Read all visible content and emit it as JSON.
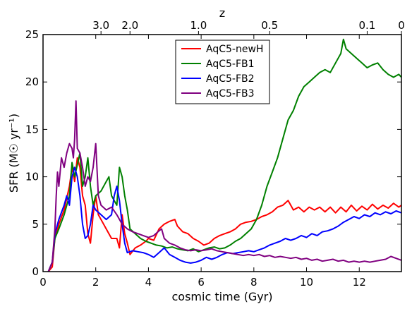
{
  "chart_data": {
    "type": "line",
    "xlabel": "cosmic time (Gyr)",
    "ylabel": "SFR (M☉ yr⁻¹)",
    "top_axis_label": "z",
    "xlim": [
      0,
      13.6
    ],
    "ylim": [
      0,
      25
    ],
    "x_ticks": [
      0,
      2,
      4,
      6,
      8,
      10,
      12
    ],
    "y_ticks": [
      0,
      5,
      10,
      15,
      20,
      25
    ],
    "top_ticks": [
      {
        "label": "3.0",
        "t": 2.2
      },
      {
        "label": "2.0",
        "t": 3.3
      },
      {
        "label": "1.0",
        "t": 5.9
      },
      {
        "label": "0.5",
        "t": 8.6
      },
      {
        "label": "0.1",
        "t": 12.3
      },
      {
        "label": "0",
        "t": 13.6
      }
    ],
    "legend_position": "top-center",
    "series": [
      {
        "name": "AqC5-newH",
        "color": "#ff0000",
        "points": [
          [
            0.2,
            0
          ],
          [
            0.35,
            0.5
          ],
          [
            0.45,
            3.5
          ],
          [
            0.6,
            5
          ],
          [
            0.8,
            6.5
          ],
          [
            1.0,
            9
          ],
          [
            1.1,
            11
          ],
          [
            1.2,
            9.5
          ],
          [
            1.3,
            12
          ],
          [
            1.4,
            11
          ],
          [
            1.5,
            8
          ],
          [
            1.6,
            7
          ],
          [
            1.7,
            4
          ],
          [
            1.8,
            3
          ],
          [
            1.9,
            6
          ],
          [
            2.0,
            8
          ],
          [
            2.1,
            6
          ],
          [
            2.2,
            5.5
          ],
          [
            2.3,
            5
          ],
          [
            2.4,
            4.5
          ],
          [
            2.6,
            3.5
          ],
          [
            2.8,
            3.5
          ],
          [
            2.9,
            2.5
          ],
          [
            3.0,
            6
          ],
          [
            3.1,
            4
          ],
          [
            3.2,
            3
          ],
          [
            3.3,
            1.8
          ],
          [
            3.5,
            2.5
          ],
          [
            3.7,
            2.8
          ],
          [
            3.9,
            3.2
          ],
          [
            4.0,
            3.5
          ],
          [
            4.2,
            3.3
          ],
          [
            4.4,
            4.5
          ],
          [
            4.6,
            5
          ],
          [
            4.8,
            5.3
          ],
          [
            5.0,
            5.5
          ],
          [
            5.1,
            4.8
          ],
          [
            5.3,
            4.2
          ],
          [
            5.5,
            4
          ],
          [
            5.7,
            3.5
          ],
          [
            5.9,
            3.2
          ],
          [
            6.1,
            2.8
          ],
          [
            6.3,
            3
          ],
          [
            6.5,
            3.5
          ],
          [
            6.7,
            3.8
          ],
          [
            6.9,
            4
          ],
          [
            7.1,
            4.2
          ],
          [
            7.3,
            4.5
          ],
          [
            7.5,
            5
          ],
          [
            7.7,
            5.2
          ],
          [
            7.9,
            5.3
          ],
          [
            8.1,
            5.5
          ],
          [
            8.3,
            5.8
          ],
          [
            8.5,
            6
          ],
          [
            8.7,
            6.3
          ],
          [
            8.9,
            6.8
          ],
          [
            9.1,
            7
          ],
          [
            9.3,
            7.5
          ],
          [
            9.5,
            6.5
          ],
          [
            9.7,
            6.8
          ],
          [
            9.9,
            6.3
          ],
          [
            10.1,
            6.8
          ],
          [
            10.3,
            6.5
          ],
          [
            10.5,
            6.8
          ],
          [
            10.7,
            6.3
          ],
          [
            10.9,
            6.8
          ],
          [
            11.1,
            6.2
          ],
          [
            11.3,
            6.8
          ],
          [
            11.5,
            6.3
          ],
          [
            11.7,
            7
          ],
          [
            11.9,
            6.4
          ],
          [
            12.1,
            6.9
          ],
          [
            12.3,
            6.5
          ],
          [
            12.5,
            7.1
          ],
          [
            12.7,
            6.6
          ],
          [
            12.9,
            7
          ],
          [
            13.1,
            6.7
          ],
          [
            13.3,
            7.2
          ],
          [
            13.5,
            6.8
          ],
          [
            13.6,
            7
          ]
        ]
      },
      {
        "name": "AqC5-FB1",
        "color": "#008000",
        "points": [
          [
            0.2,
            0
          ],
          [
            0.35,
            1
          ],
          [
            0.45,
            3.5
          ],
          [
            0.6,
            4.5
          ],
          [
            0.8,
            6
          ],
          [
            1.0,
            8
          ],
          [
            1.1,
            11.5
          ],
          [
            1.2,
            10
          ],
          [
            1.4,
            12.5
          ],
          [
            1.5,
            9
          ],
          [
            1.6,
            10
          ],
          [
            1.7,
            12
          ],
          [
            1.8,
            9
          ],
          [
            1.9,
            7
          ],
          [
            2.0,
            8
          ],
          [
            2.2,
            8.5
          ],
          [
            2.4,
            9.5
          ],
          [
            2.5,
            10
          ],
          [
            2.6,
            8
          ],
          [
            2.8,
            7
          ],
          [
            2.9,
            11
          ],
          [
            3.0,
            10
          ],
          [
            3.1,
            8
          ],
          [
            3.2,
            6.5
          ],
          [
            3.3,
            4.5
          ],
          [
            3.5,
            4
          ],
          [
            3.7,
            3.5
          ],
          [
            3.9,
            3.2
          ],
          [
            4.1,
            3
          ],
          [
            4.3,
            2.8
          ],
          [
            4.5,
            2.7
          ],
          [
            4.7,
            2.5
          ],
          [
            4.9,
            2.6
          ],
          [
            5.1,
            2.4
          ],
          [
            5.3,
            2.3
          ],
          [
            5.5,
            2.2
          ],
          [
            5.7,
            2.4
          ],
          [
            5.9,
            2.1
          ],
          [
            6.1,
            2.3
          ],
          [
            6.3,
            2.5
          ],
          [
            6.5,
            2.6
          ],
          [
            6.7,
            2.4
          ],
          [
            6.9,
            2.5
          ],
          [
            7.1,
            2.8
          ],
          [
            7.3,
            3.2
          ],
          [
            7.5,
            3.5
          ],
          [
            7.7,
            4
          ],
          [
            7.9,
            4.5
          ],
          [
            8.1,
            5.5
          ],
          [
            8.3,
            7
          ],
          [
            8.5,
            9
          ],
          [
            8.7,
            10.5
          ],
          [
            8.9,
            12
          ],
          [
            9.1,
            14
          ],
          [
            9.3,
            16
          ],
          [
            9.5,
            17
          ],
          [
            9.7,
            18.5
          ],
          [
            9.9,
            19.5
          ],
          [
            10.1,
            20
          ],
          [
            10.3,
            20.5
          ],
          [
            10.5,
            21
          ],
          [
            10.7,
            21.3
          ],
          [
            10.9,
            21
          ],
          [
            11.1,
            22
          ],
          [
            11.3,
            23
          ],
          [
            11.4,
            24.5
          ],
          [
            11.5,
            23.5
          ],
          [
            11.7,
            23
          ],
          [
            11.9,
            22.5
          ],
          [
            12.1,
            22
          ],
          [
            12.3,
            21.5
          ],
          [
            12.5,
            21.8
          ],
          [
            12.7,
            22
          ],
          [
            12.9,
            21.3
          ],
          [
            13.1,
            20.8
          ],
          [
            13.3,
            20.5
          ],
          [
            13.5,
            20.8
          ],
          [
            13.6,
            20.5
          ]
        ]
      },
      {
        "name": "AqC5-FB2",
        "color": "#0000ff",
        "points": [
          [
            0.2,
            0
          ],
          [
            0.35,
            1
          ],
          [
            0.45,
            4
          ],
          [
            0.6,
            5.5
          ],
          [
            0.8,
            7
          ],
          [
            0.9,
            8
          ],
          [
            1.0,
            7
          ],
          [
            1.1,
            10
          ],
          [
            1.2,
            11
          ],
          [
            1.3,
            10
          ],
          [
            1.4,
            8
          ],
          [
            1.5,
            5
          ],
          [
            1.6,
            3.5
          ],
          [
            1.7,
            3.8
          ],
          [
            1.8,
            5
          ],
          [
            1.9,
            7
          ],
          [
            2.0,
            6.5
          ],
          [
            2.2,
            6
          ],
          [
            2.4,
            5.5
          ],
          [
            2.6,
            6
          ],
          [
            2.7,
            8
          ],
          [
            2.8,
            9
          ],
          [
            2.9,
            7.5
          ],
          [
            3.0,
            5
          ],
          [
            3.1,
            3
          ],
          [
            3.2,
            2
          ],
          [
            3.4,
            2.2
          ],
          [
            3.6,
            2.1
          ],
          [
            3.8,
            2
          ],
          [
            4.0,
            1.8
          ],
          [
            4.2,
            1.5
          ],
          [
            4.4,
            2
          ],
          [
            4.6,
            2.5
          ],
          [
            4.8,
            1.8
          ],
          [
            5.0,
            1.5
          ],
          [
            5.2,
            1.2
          ],
          [
            5.4,
            1
          ],
          [
            5.6,
            0.9
          ],
          [
            5.8,
            1
          ],
          [
            6.0,
            1.2
          ],
          [
            6.2,
            1.5
          ],
          [
            6.4,
            1.3
          ],
          [
            6.6,
            1.5
          ],
          [
            6.8,
            1.8
          ],
          [
            7.0,
            2
          ],
          [
            7.2,
            1.9
          ],
          [
            7.4,
            2
          ],
          [
            7.6,
            2.1
          ],
          [
            7.8,
            2.2
          ],
          [
            8.0,
            2.1
          ],
          [
            8.2,
            2.3
          ],
          [
            8.4,
            2.5
          ],
          [
            8.6,
            2.8
          ],
          [
            8.8,
            3
          ],
          [
            9.0,
            3.2
          ],
          [
            9.2,
            3.5
          ],
          [
            9.4,
            3.3
          ],
          [
            9.6,
            3.5
          ],
          [
            9.8,
            3.8
          ],
          [
            10.0,
            3.6
          ],
          [
            10.2,
            4
          ],
          [
            10.4,
            3.8
          ],
          [
            10.6,
            4.2
          ],
          [
            10.8,
            4.3
          ],
          [
            11.0,
            4.5
          ],
          [
            11.2,
            4.8
          ],
          [
            11.4,
            5.2
          ],
          [
            11.6,
            5.5
          ],
          [
            11.8,
            5.8
          ],
          [
            12.0,
            5.6
          ],
          [
            12.2,
            6
          ],
          [
            12.4,
            5.8
          ],
          [
            12.6,
            6.2
          ],
          [
            12.8,
            6
          ],
          [
            13.0,
            6.3
          ],
          [
            13.2,
            6.1
          ],
          [
            13.4,
            6.4
          ],
          [
            13.6,
            6.2
          ]
        ]
      },
      {
        "name": "AqC5-FB3",
        "color": "#800080",
        "points": [
          [
            0.2,
            0
          ],
          [
            0.35,
            1
          ],
          [
            0.45,
            4.5
          ],
          [
            0.5,
            8
          ],
          [
            0.55,
            10.5
          ],
          [
            0.6,
            9
          ],
          [
            0.7,
            12
          ],
          [
            0.8,
            11
          ],
          [
            0.9,
            12.5
          ],
          [
            1.0,
            13.5
          ],
          [
            1.1,
            13
          ],
          [
            1.15,
            12
          ],
          [
            1.2,
            14
          ],
          [
            1.25,
            18
          ],
          [
            1.3,
            13
          ],
          [
            1.4,
            12.5
          ],
          [
            1.5,
            11
          ],
          [
            1.6,
            9
          ],
          [
            1.7,
            10
          ],
          [
            1.8,
            9.5
          ],
          [
            1.9,
            11
          ],
          [
            2.0,
            13.5
          ],
          [
            2.1,
            8
          ],
          [
            2.2,
            7
          ],
          [
            2.4,
            6.5
          ],
          [
            2.6,
            6.8
          ],
          [
            2.8,
            6
          ],
          [
            3.0,
            5
          ],
          [
            3.2,
            4.5
          ],
          [
            3.4,
            4.2
          ],
          [
            3.6,
            4
          ],
          [
            3.8,
            3.8
          ],
          [
            4.0,
            3.6
          ],
          [
            4.2,
            3.8
          ],
          [
            4.4,
            4.3
          ],
          [
            4.5,
            4.5
          ],
          [
            4.6,
            3.5
          ],
          [
            4.8,
            3
          ],
          [
            5.0,
            2.8
          ],
          [
            5.2,
            2.5
          ],
          [
            5.4,
            2.3
          ],
          [
            5.6,
            2.2
          ],
          [
            5.8,
            2.3
          ],
          [
            6.0,
            2.2
          ],
          [
            6.2,
            2.3
          ],
          [
            6.4,
            2.4
          ],
          [
            6.6,
            2.2
          ],
          [
            6.8,
            2.1
          ],
          [
            7.0,
            2
          ],
          [
            7.2,
            1.9
          ],
          [
            7.4,
            1.8
          ],
          [
            7.6,
            1.7
          ],
          [
            7.8,
            1.8
          ],
          [
            8.0,
            1.7
          ],
          [
            8.2,
            1.8
          ],
          [
            8.4,
            1.6
          ],
          [
            8.6,
            1.7
          ],
          [
            8.8,
            1.5
          ],
          [
            9.0,
            1.6
          ],
          [
            9.2,
            1.5
          ],
          [
            9.4,
            1.4
          ],
          [
            9.6,
            1.5
          ],
          [
            9.8,
            1.3
          ],
          [
            10.0,
            1.4
          ],
          [
            10.2,
            1.2
          ],
          [
            10.4,
            1.3
          ],
          [
            10.6,
            1.1
          ],
          [
            10.8,
            1.2
          ],
          [
            11.0,
            1.3
          ],
          [
            11.2,
            1.1
          ],
          [
            11.4,
            1.2
          ],
          [
            11.6,
            1
          ],
          [
            11.8,
            1.1
          ],
          [
            12.0,
            1
          ],
          [
            12.2,
            1.1
          ],
          [
            12.4,
            1
          ],
          [
            12.6,
            1.1
          ],
          [
            12.8,
            1.2
          ],
          [
            13.0,
            1.3
          ],
          [
            13.2,
            1.6
          ],
          [
            13.4,
            1.4
          ],
          [
            13.6,
            1.2
          ]
        ]
      }
    ]
  }
}
